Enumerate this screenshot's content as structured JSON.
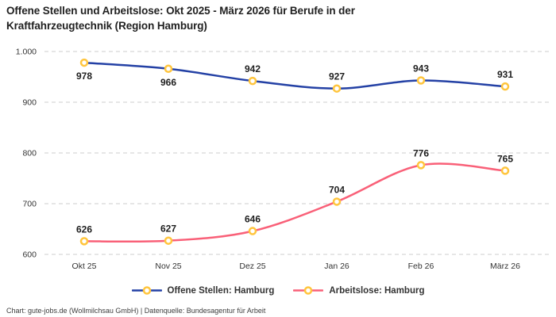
{
  "title": {
    "line1": "Offene Stellen und Arbeitslose: Okt 2025 - März 2026 für Berufe in der",
    "line2": "Kraftfahrzeugtechnik (Region Hamburg)"
  },
  "chart_data": {
    "type": "line",
    "x": [
      "Okt 25",
      "Nov 25",
      "Dez 25",
      "Jan 26",
      "Feb 26",
      "März 26"
    ],
    "series": [
      {
        "name": "Offene Stellen: Hamburg",
        "color": "#2441A5",
        "values": [
          978,
          966,
          942,
          927,
          943,
          931
        ],
        "value_labels": [
          "978",
          "966",
          "942",
          "927",
          "943",
          "931"
        ],
        "label_positions": [
          "below",
          "below",
          "above",
          "above",
          "above",
          "above"
        ]
      },
      {
        "name": "Arbeitslose: Hamburg",
        "color": "#F96078",
        "values": [
          626,
          627,
          646,
          704,
          776,
          765
        ],
        "value_labels": [
          "626",
          "627",
          "646",
          "704",
          "776",
          "765"
        ],
        "label_positions": [
          "above",
          "above",
          "above",
          "above",
          "above",
          "above"
        ]
      }
    ],
    "y_ticks": [
      {
        "value": 1000,
        "label": "1.000"
      },
      {
        "value": 900,
        "label": "900"
      },
      {
        "value": 800,
        "label": "800"
      },
      {
        "value": 700,
        "label": "700"
      },
      {
        "value": 600,
        "label": "600"
      }
    ],
    "ylim": [
      600,
      1000
    ],
    "grid": "horizontal-dashed",
    "legend_position": "bottom",
    "marker": {
      "fill": "#FFFFFF",
      "stroke": "#FFC53D"
    },
    "colors": {
      "gridline": "#CCCCCC",
      "axis_text": "#333333",
      "value_label_text": "#1E1E1E"
    }
  },
  "footer": {
    "text": "Chart: gute-jobs.de (Wollmilchsau GmbH) | Datenquelle: Bundesagentur für Arbeit"
  }
}
